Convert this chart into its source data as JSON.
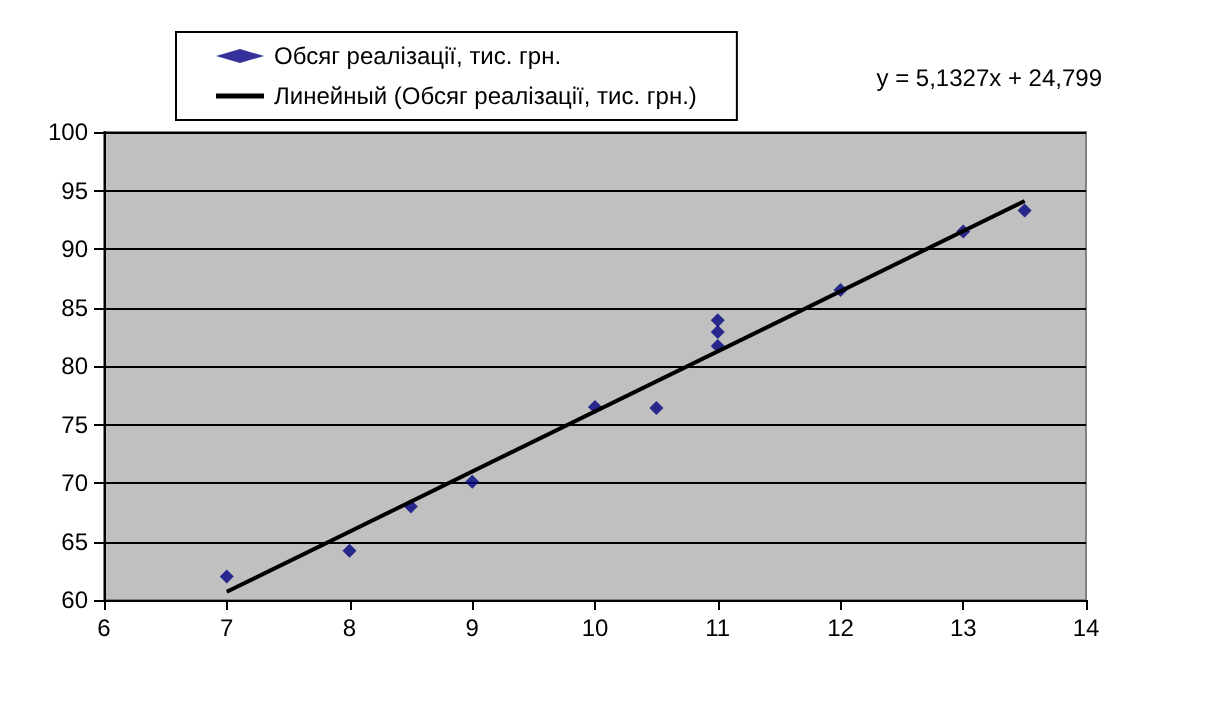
{
  "chart_data": {
    "type": "scatter",
    "x": [
      7,
      8,
      8.5,
      9,
      10,
      10.5,
      11,
      11,
      11,
      12,
      13,
      13.5
    ],
    "series": [
      {
        "name": "Обсяг реалізації, тис. грн.",
        "color": "#000080",
        "values": [
          62.0,
          64.2,
          68.0,
          70.1,
          76.5,
          76.4,
          83.9,
          82.9,
          81.7,
          86.5,
          91.5,
          93.3
        ],
        "marker": "diamond"
      },
      {
        "name": "Линейный (Обсяг реалізації, тис. грн.)",
        "type": "line",
        "color": "#000000",
        "x": [
          7,
          13.5
        ],
        "values": [
          60.7,
          94.1
        ],
        "marker": "none"
      }
    ],
    "xlim": [
      6,
      14
    ],
    "xticks": [
      6,
      7,
      8,
      9,
      10,
      11,
      12,
      13,
      14
    ],
    "ylim": [
      60,
      100
    ],
    "yticks": [
      60,
      65,
      70,
      75,
      80,
      85,
      90,
      95,
      100
    ],
    "grid": "y",
    "legend": "top left",
    "annotations": [
      "y = 5,1327x + 24,799"
    ]
  }
}
